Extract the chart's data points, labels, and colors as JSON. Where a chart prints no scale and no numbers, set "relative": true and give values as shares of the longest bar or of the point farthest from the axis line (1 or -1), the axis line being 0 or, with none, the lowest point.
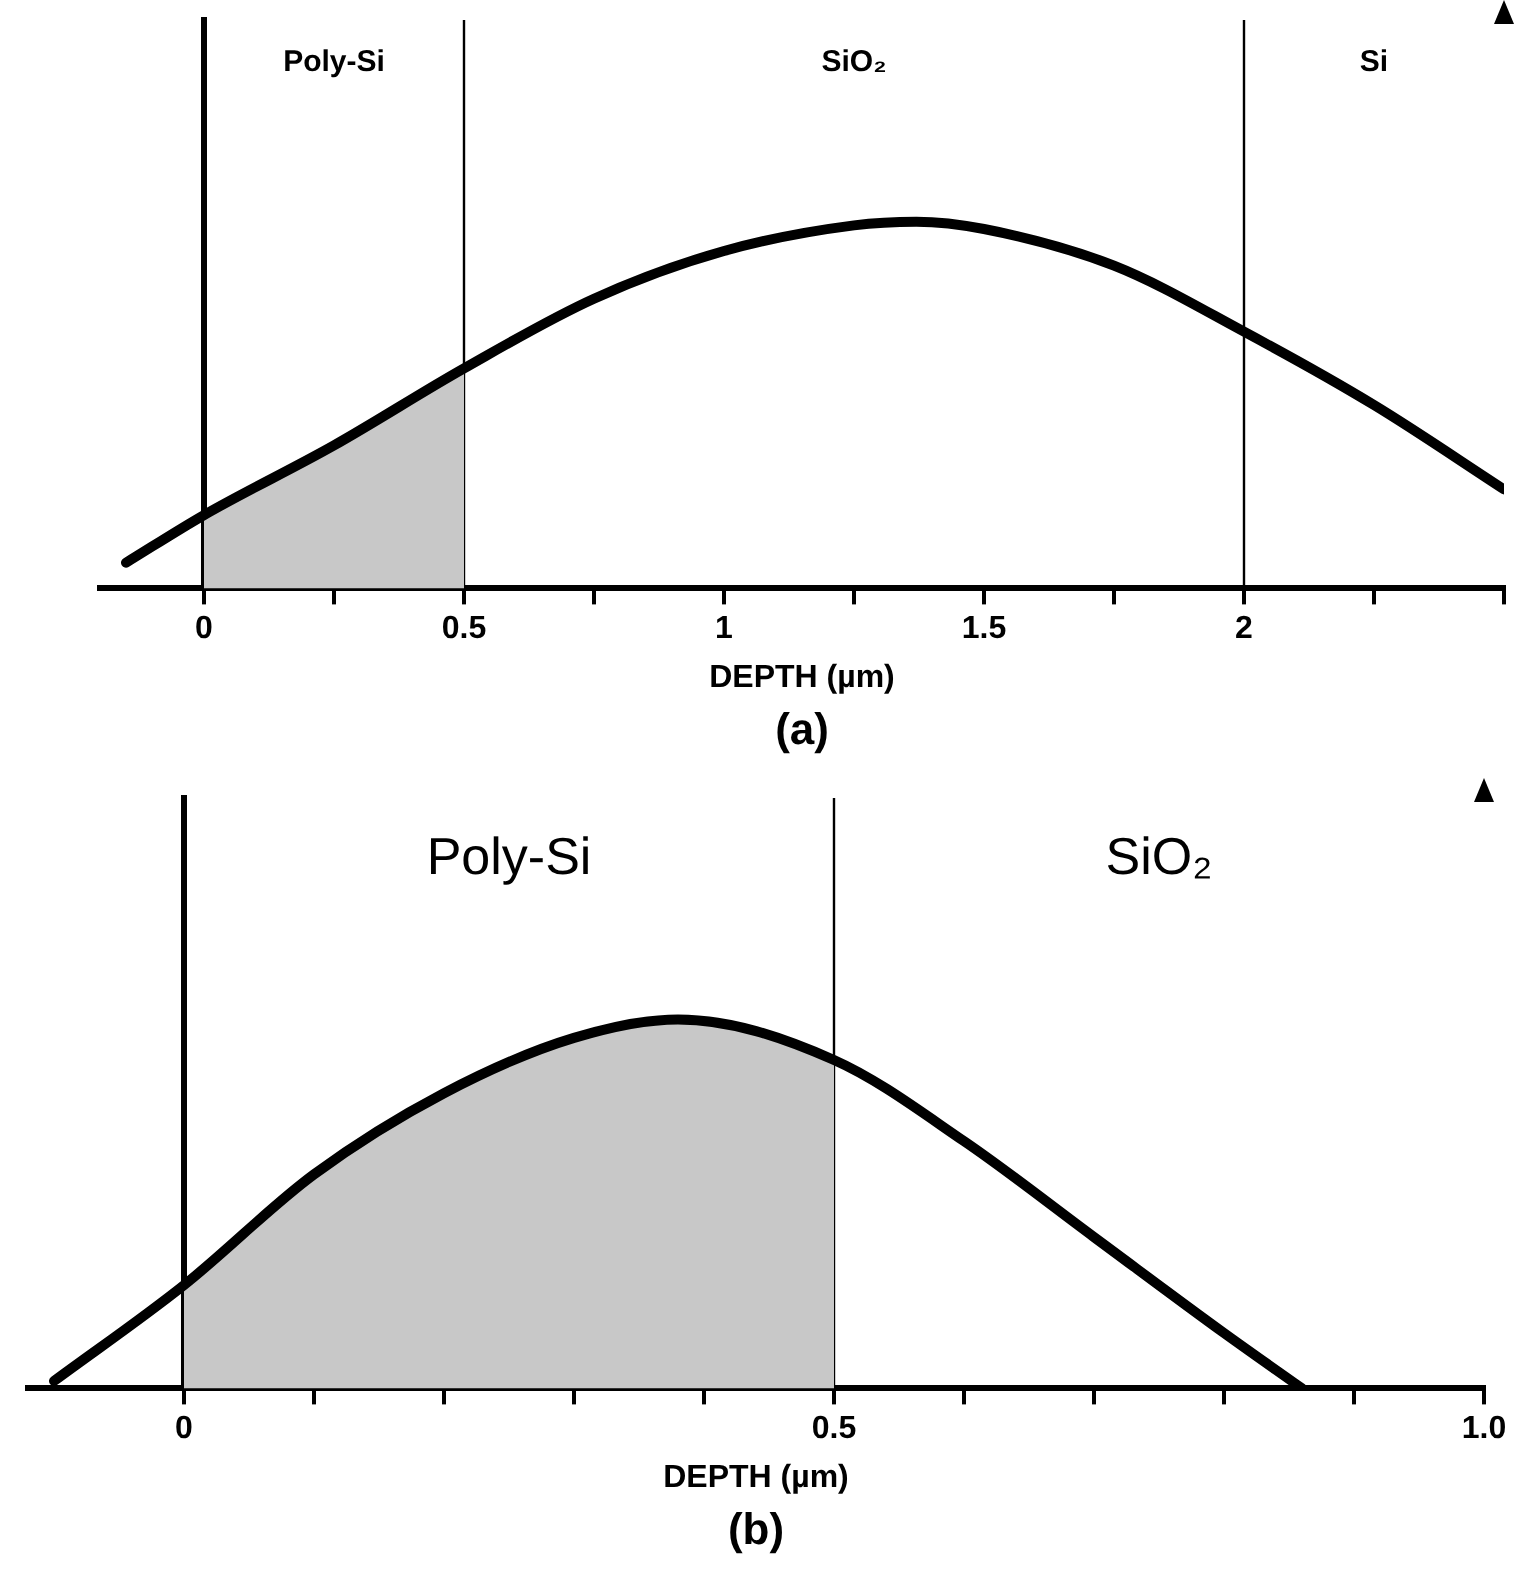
{
  "chart_data": [
    {
      "type": "line",
      "title": "(a)",
      "xlabel": "DEPTH (µm)",
      "relative": true,
      "xlim": [
        -0.2,
        2.5
      ],
      "xticks": [
        0,
        {
          "value": 0.25,
          "label": null
        },
        0.5,
        {
          "value": 0.75,
          "label": null
        },
        1,
        {
          "value": 1.25,
          "label": null
        },
        1.5,
        {
          "value": 1.75,
          "label": null
        },
        2,
        {
          "value": 2.25,
          "label": null
        },
        {
          "value": 2.5,
          "label": null
        }
      ],
      "grid": false,
      "legend": false,
      "marker": "none",
      "line_style": "solid",
      "series": [
        {
          "type": "line",
          "color": "#000000",
          "x": [
            -0.15,
            0,
            0.25,
            0.5,
            0.75,
            1,
            1.25,
            1.37,
            1.5,
            1.75,
            2,
            2.25,
            2.5
          ],
          "values": [
            0.07,
            0.2,
            0.39,
            0.6,
            0.79,
            0.92,
            0.99,
            1,
            0.98,
            0.88,
            0.7,
            0.5,
            0.27
          ]
        },
        {
          "type": "area",
          "color": "#c8c8c8",
          "x": [
            0,
            0.25,
            0.5
          ],
          "values": [
            0.2,
            0.39,
            0.6
          ]
        }
      ],
      "ref_lines": [
        {
          "axis": "x",
          "value": 0.5
        },
        {
          "axis": "x",
          "value": 2
        }
      ],
      "annotations": [
        "Poly-Si",
        "SiO₂",
        "Si"
      ]
    },
    {
      "type": "line",
      "title": "(b)",
      "xlabel": "DEPTH (µm)",
      "relative": true,
      "xlim": [
        -0.12,
        1.0
      ],
      "xticks": [
        0,
        {
          "value": 0.1,
          "label": null
        },
        {
          "value": 0.2,
          "label": null
        },
        {
          "value": 0.3,
          "label": null
        },
        {
          "value": 0.4,
          "label": null
        },
        0.5,
        {
          "value": 0.6,
          "label": null
        },
        {
          "value": 0.7,
          "label": null
        },
        {
          "value": 0.8,
          "label": null
        },
        {
          "value": 0.9,
          "label": null
        },
        {
          "value": 1.0,
          "label": "1.0"
        }
      ],
      "grid": false,
      "legend": false,
      "marker": "none",
      "line_style": "solid",
      "series": [
        {
          "type": "line",
          "color": "#000000",
          "x": [
            -0.1,
            0,
            0.1,
            0.2,
            0.3,
            0.38,
            0.5,
            0.6,
            0.7,
            0.8,
            0.86
          ],
          "values": [
            0.02,
            0.28,
            0.58,
            0.8,
            0.95,
            1,
            0.89,
            0.67,
            0.41,
            0.15,
            0
          ]
        },
        {
          "type": "area",
          "color": "#c8c8c8",
          "x": [
            0,
            0.1,
            0.2,
            0.3,
            0.38,
            0.5
          ],
          "values": [
            0.28,
            0.58,
            0.8,
            0.95,
            1,
            0.89
          ]
        }
      ],
      "ref_lines": [
        {
          "axis": "x",
          "value": 0.5
        }
      ],
      "annotations": [
        "Poly-Si",
        "SiO₂"
      ]
    }
  ]
}
